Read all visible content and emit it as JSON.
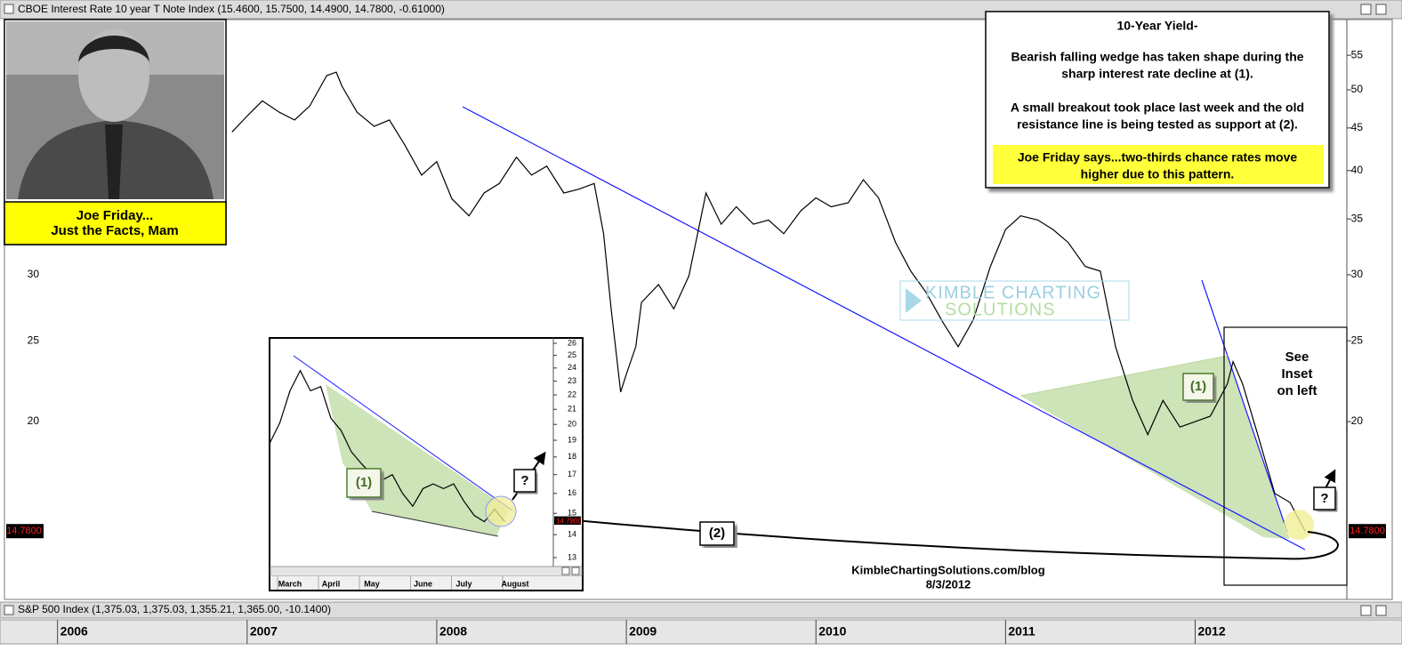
{
  "header": {
    "main_title": "CBOE Interest Rate 10 year T Note Index (15.4600, 15.7500, 14.4900, 14.7800, -0.61000)",
    "lower_title": "S&P 500 Index (1,375.03, 1,375.03, 1,355.21, 1,365.00, -10.1400)"
  },
  "photo_caption": [
    "Joe Friday...",
    "Just the Facts, Mam"
  ],
  "note": {
    "title": "10-Year Yield-",
    "paragraphs": [
      [
        "Bearish falling wedge has taken shape during the",
        "sharp interest rate decline at (1)."
      ],
      [
        "A small breakout took place last week and the old",
        "resistance line is being tested as support at (2)."
      ]
    ],
    "highlight": [
      "Joe Friday says...two-thirds chance rates move",
      "higher due to this pattern."
    ]
  },
  "watermark": [
    "KIMBLE CHARTING",
    "SOLUTIONS"
  ],
  "footer": [
    "KimbleChartingSolutions.com/blog",
    "8/3/2012"
  ],
  "chart_data": [
    {
      "type": "line",
      "log_scale": true,
      "grid": false,
      "color": "#000000",
      "x": [
        2006.92,
        2007.0,
        2007.08,
        2007.17,
        2007.25,
        2007.33,
        2007.42,
        2007.47,
        2007.5,
        2007.58,
        2007.67,
        2007.75,
        2007.83,
        2007.92,
        2008.0,
        2008.08,
        2008.17,
        2008.25,
        2008.33,
        2008.42,
        2008.5,
        2008.58,
        2008.67,
        2008.75,
        2008.83,
        2008.88,
        2008.92,
        2008.97,
        2009.0,
        2009.05,
        2009.08,
        2009.17,
        2009.25,
        2009.33,
        2009.42,
        2009.5,
        2009.58,
        2009.67,
        2009.75,
        2009.83,
        2009.92,
        2010.0,
        2010.08,
        2010.17,
        2010.25,
        2010.33,
        2010.42,
        2010.5,
        2010.58,
        2010.67,
        2010.75,
        2010.83,
        2010.92,
        2011.0,
        2011.08,
        2011.17,
        2011.25,
        2011.33,
        2011.42,
        2011.5,
        2011.58,
        2011.67,
        2011.75,
        2011.83,
        2011.92,
        2012.0,
        2012.08,
        2012.17,
        2012.2,
        2012.25,
        2012.33,
        2012.42,
        2012.5,
        2012.58
      ],
      "values": [
        44.5,
        46.5,
        48.5,
        47,
        46,
        47.8,
        52,
        52.5,
        50.5,
        47,
        45.2,
        46,
        43,
        39.5,
        41,
        37,
        35.3,
        37.6,
        38.6,
        41.5,
        39.5,
        40.5,
        37.6,
        38,
        38.6,
        33.6,
        27.3,
        21.7,
        22.8,
        24.6,
        27.8,
        29.2,
        27.3,
        29.9,
        37.6,
        34.5,
        36.2,
        34.5,
        34.9,
        33.6,
        35.8,
        37.1,
        36.2,
        36.6,
        39,
        37.1,
        32.8,
        30.3,
        28.6,
        26.3,
        24.6,
        26.5,
        30.7,
        34,
        35.3,
        34.9,
        34,
        32.8,
        30.7,
        30.3,
        24.6,
        21.2,
        19.3,
        21.2,
        19.7,
        20,
        20.3,
        22.2,
        23.6,
        22.2,
        19.3,
        16.4,
        16,
        14.78
      ],
      "xlim": [
        2005.72,
        2012.8
      ],
      "xticks": [
        2006,
        2007,
        2008,
        2009,
        2010,
        2011,
        2012
      ],
      "ylim": [
        12.27,
        60.7
      ],
      "yticks": [
        20,
        25,
        30,
        35,
        40,
        45,
        50,
        55
      ],
      "last_value_label": "14.7800",
      "annotations": {
        "wedge": "(1)",
        "retest": "(2)",
        "question": "?",
        "inset_note": [
          "See",
          "Inset",
          "on left"
        ]
      }
    },
    {
      "type": "line",
      "log_scale": true,
      "grid": false,
      "color": "#000000",
      "categories": [
        null,
        null,
        "March",
        null,
        null,
        null,
        "April",
        null,
        null,
        null,
        "May",
        null,
        null,
        null,
        null,
        "June",
        null,
        null,
        null,
        "July",
        null,
        null,
        null,
        null,
        "August"
      ],
      "values": [
        18.8,
        20.1,
        22.3,
        23.8,
        22.3,
        22.6,
        20.4,
        19.6,
        18.3,
        17.6,
        17.0,
        16.7,
        17.0,
        16.0,
        15.35,
        16.25,
        16.5,
        16.25,
        16.5,
        15.6,
        14.9,
        14.6,
        15.2,
        14.6,
        null
      ],
      "ylim": [
        12.63,
        26.3
      ],
      "yticks": [
        13,
        14,
        15,
        16,
        17,
        18,
        19,
        20,
        21,
        22,
        23,
        24,
        25,
        26
      ],
      "last_value_label": "14.7800",
      "annotations": {
        "wedge": "(1)",
        "question": "?"
      }
    }
  ]
}
